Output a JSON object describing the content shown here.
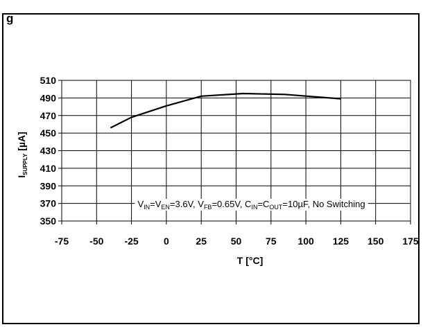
{
  "figure": {
    "caption_fragment": "g"
  },
  "chart_data": {
    "type": "line",
    "title": "",
    "xlabel": "T [°C]",
    "ylabel": {
      "main": "I",
      "sub": "SUPPLY",
      "unit": " [µA]"
    },
    "xlim": [
      -75,
      175
    ],
    "ylim": [
      350,
      510
    ],
    "xticks": [
      -75,
      -50,
      -25,
      0,
      25,
      50,
      75,
      100,
      125,
      150,
      175
    ],
    "yticks": [
      350,
      370,
      390,
      410,
      430,
      450,
      470,
      490,
      510
    ],
    "grid": true,
    "annotation": [
      {
        "t": "V",
        "s": "n"
      },
      {
        "t": "IN",
        "s": "sub"
      },
      {
        "t": "=V",
        "s": "n"
      },
      {
        "t": "EN",
        "s": "sub"
      },
      {
        "t": "=3.6V, V",
        "s": "n"
      },
      {
        "t": "FB",
        "s": "sub"
      },
      {
        "t": "=0.65V, C",
        "s": "n"
      },
      {
        "t": "IN",
        "s": "sub"
      },
      {
        "t": "=C",
        "s": "n"
      },
      {
        "t": "OUT",
        "s": "sub"
      },
      {
        "t": "=10µF, No Switching",
        "s": "n"
      }
    ],
    "series": [
      {
        "x": [
          -40,
          -25,
          0,
          25,
          55,
          85,
          125
        ],
        "y": [
          456,
          468,
          481,
          492,
          495,
          494,
          489
        ],
        "color": "#000000"
      }
    ]
  }
}
